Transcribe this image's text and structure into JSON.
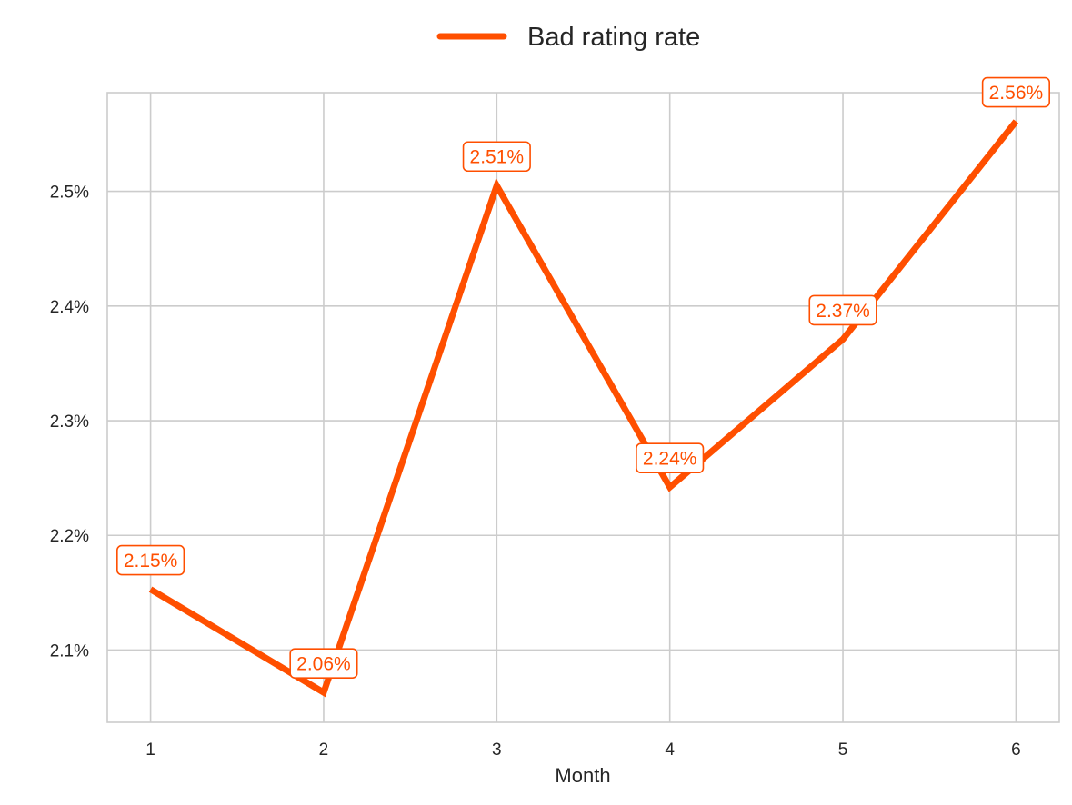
{
  "chart_data": {
    "type": "line",
    "title": "",
    "xlabel": "Month",
    "ylabel": "",
    "x": [
      1,
      2,
      3,
      4,
      5,
      6
    ],
    "x_tick_labels": [
      "1",
      "2",
      "3",
      "4",
      "5",
      "6"
    ],
    "y_ticks": [
      2.1,
      2.2,
      2.3,
      2.4,
      2.5
    ],
    "y_tick_labels": [
      "2.1%",
      "2.2%",
      "2.3%",
      "2.4%",
      "2.5%"
    ],
    "xlim": [
      0.75,
      6.25
    ],
    "ylim": [
      2.037,
      2.586
    ],
    "grid": true,
    "legend": {
      "placement": "top-center",
      "entries": [
        "Bad rating rate"
      ]
    },
    "series": [
      {
        "name": "Bad rating rate",
        "color": "#FF4F00",
        "values": [
          2.153,
          2.063,
          2.505,
          2.242,
          2.371,
          2.561
        ],
        "data_labels": [
          "2.15%",
          "2.06%",
          "2.51%",
          "2.24%",
          "2.37%",
          "2.56%"
        ]
      }
    ]
  }
}
